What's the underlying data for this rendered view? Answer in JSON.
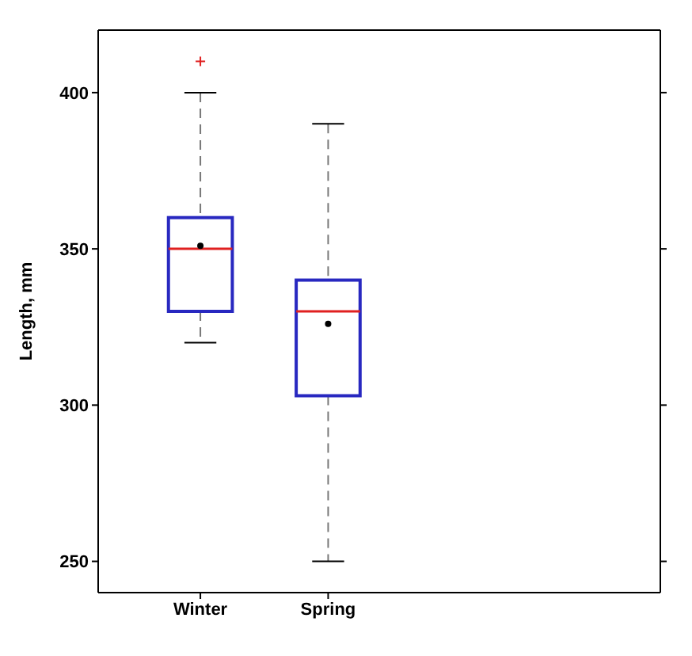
{
  "chart_data": {
    "type": "box",
    "ylabel": "Length, mm",
    "categories": [
      "Winter",
      "Spring"
    ],
    "ylim": [
      240,
      420
    ],
    "yticks": [
      250,
      300,
      350,
      400
    ],
    "series": [
      {
        "color": "#2828c0",
        "boxes": [
          {
            "low": 320,
            "q1": 330,
            "median": 350,
            "q3": 360,
            "high": 400,
            "mean": 351,
            "outliers": [
              410
            ]
          },
          {
            "low": 250,
            "q1": 303,
            "median": 330,
            "q3": 340,
            "high": 390,
            "mean": 326
          }
        ]
      }
    ]
  }
}
